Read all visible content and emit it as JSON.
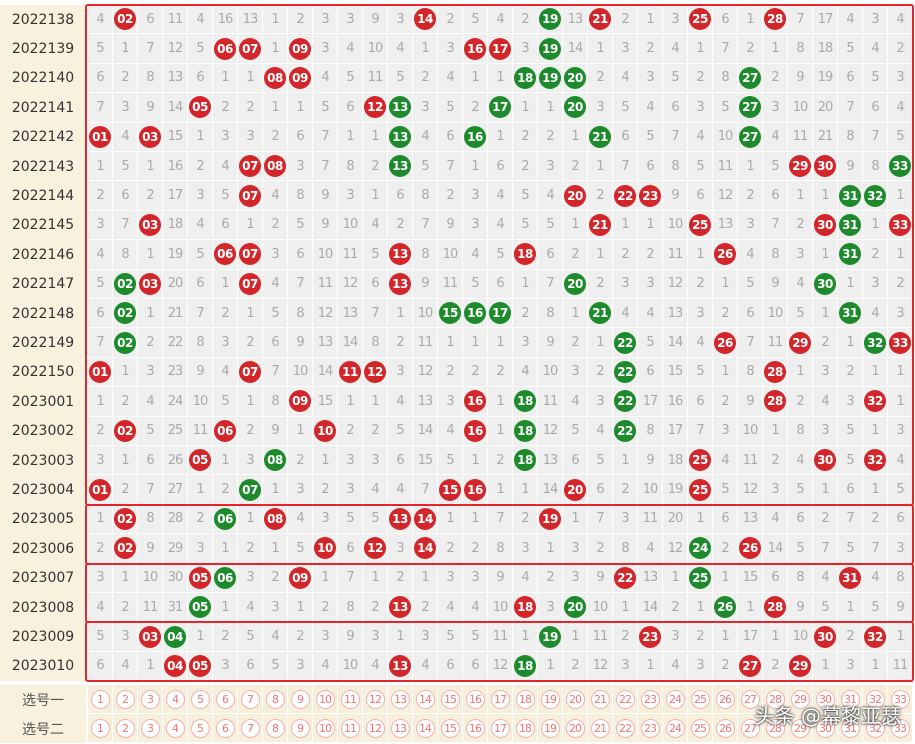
{
  "rows": [
    {
      "issue": "2022138",
      "cells": [
        "4",
        {
          "text": "02",
          "color": "red"
        },
        "6",
        "11",
        "4",
        "16",
        "13",
        "1",
        "2",
        "3",
        "3",
        "9",
        "3",
        {
          "text": "14",
          "color": "red"
        },
        "2",
        "5",
        "4",
        "2",
        {
          "text": "19",
          "color": "green"
        },
        "13",
        {
          "text": "21",
          "color": "red"
        },
        "2",
        "1",
        "3",
        {
          "text": "25",
          "color": "red"
        },
        "6",
        "1",
        {
          "text": "28",
          "color": "red"
        },
        "7",
        "17",
        "4",
        "3",
        "4"
      ]
    },
    {
      "issue": "2022139",
      "cells": [
        "5",
        "1",
        "7",
        "12",
        "5",
        {
          "text": "06",
          "color": "red"
        },
        {
          "text": "07",
          "color": "red"
        },
        "1",
        {
          "text": "09",
          "color": "red"
        },
        "3",
        "4",
        "10",
        "4",
        "1",
        "3",
        {
          "text": "16",
          "color": "red"
        },
        {
          "text": "17",
          "color": "red"
        },
        "3",
        {
          "text": "19",
          "color": "green"
        },
        "14",
        "1",
        "3",
        "2",
        "4",
        "1",
        "7",
        "2",
        "1",
        "8",
        "18",
        "5",
        "4",
        "2"
      ]
    },
    {
      "issue": "2022140",
      "cells": [
        "6",
        "2",
        "8",
        "13",
        "6",
        "1",
        "1",
        {
          "text": "08",
          "color": "red"
        },
        {
          "text": "09",
          "color": "red"
        },
        "4",
        "5",
        "11",
        "5",
        "2",
        "4",
        "1",
        "1",
        {
          "text": "18",
          "color": "green"
        },
        {
          "text": "19",
          "color": "green"
        },
        {
          "text": "20",
          "color": "green"
        },
        "2",
        "4",
        "3",
        "5",
        "2",
        "8",
        {
          "text": "27",
          "color": "green"
        },
        "2",
        "9",
        "19",
        "6",
        "5",
        "3"
      ]
    },
    {
      "issue": "2022141",
      "cells": [
        "7",
        "3",
        "9",
        "14",
        {
          "text": "05",
          "color": "red"
        },
        "2",
        "2",
        "1",
        "1",
        "5",
        "6",
        {
          "text": "12",
          "color": "red"
        },
        {
          "text": "13",
          "color": "green"
        },
        "3",
        "5",
        "2",
        {
          "text": "17",
          "color": "green"
        },
        "1",
        "1",
        {
          "text": "20",
          "color": "green"
        },
        "3",
        "5",
        "4",
        "6",
        "3",
        "5",
        {
          "text": "27",
          "color": "green"
        },
        "3",
        "10",
        "20",
        "7",
        "6",
        "4"
      ]
    },
    {
      "issue": "2022142",
      "cells": [
        {
          "text": "01",
          "color": "red"
        },
        "4",
        {
          "text": "03",
          "color": "red"
        },
        "15",
        "1",
        "3",
        "3",
        "2",
        "6",
        "7",
        "1",
        "1",
        {
          "text": "13",
          "color": "green"
        },
        "4",
        "6",
        {
          "text": "16",
          "color": "green"
        },
        "1",
        "2",
        "2",
        "1",
        {
          "text": "21",
          "color": "green"
        },
        "6",
        "5",
        "7",
        "4",
        "10",
        {
          "text": "27",
          "color": "green"
        },
        "4",
        "11",
        "21",
        "8",
        "7",
        "5"
      ]
    },
    {
      "issue": "2022143",
      "cells": [
        "1",
        "5",
        "1",
        "16",
        "2",
        "4",
        {
          "text": "07",
          "color": "red"
        },
        {
          "text": "08",
          "color": "red"
        },
        "3",
        "7",
        "8",
        "2",
        {
          "text": "13",
          "color": "green"
        },
        "5",
        "7",
        "1",
        "6",
        "2",
        "3",
        "2",
        "1",
        "7",
        "6",
        "8",
        "5",
        "11",
        "1",
        "5",
        {
          "text": "29",
          "color": "red"
        },
        {
          "text": "30",
          "color": "red"
        },
        "9",
        "8",
        {
          "text": "33",
          "color": "green"
        }
      ]
    },
    {
      "issue": "2022144",
      "cells": [
        "2",
        "6",
        "2",
        "17",
        "3",
        "5",
        {
          "text": "07",
          "color": "red"
        },
        "4",
        "8",
        "9",
        "3",
        "1",
        "6",
        "8",
        "2",
        "3",
        "4",
        "5",
        "4",
        {
          "text": "20",
          "color": "red"
        },
        "2",
        {
          "text": "22",
          "color": "red"
        },
        {
          "text": "23",
          "color": "red"
        },
        "9",
        "6",
        "12",
        "2",
        "6",
        "1",
        "1",
        {
          "text": "31",
          "color": "green"
        },
        {
          "text": "32",
          "color": "green"
        },
        "1"
      ]
    },
    {
      "issue": "2022145",
      "cells": [
        "3",
        "7",
        {
          "text": "03",
          "color": "red"
        },
        "18",
        "4",
        "6",
        "1",
        "2",
        "5",
        "9",
        "10",
        "4",
        "2",
        "7",
        "9",
        "3",
        "4",
        "5",
        "5",
        "1",
        {
          "text": "21",
          "color": "red"
        },
        "1",
        "1",
        "10",
        {
          "text": "25",
          "color": "red"
        },
        "13",
        "3",
        "7",
        "2",
        {
          "text": "30",
          "color": "red"
        },
        {
          "text": "31",
          "color": "green"
        },
        "1",
        {
          "text": "33",
          "color": "red"
        }
      ]
    },
    {
      "issue": "2022146",
      "cells": [
        "4",
        "8",
        "1",
        "19",
        "5",
        {
          "text": "06",
          "color": "red"
        },
        {
          "text": "07",
          "color": "red"
        },
        "3",
        "6",
        "10",
        "11",
        "5",
        {
          "text": "13",
          "color": "red"
        },
        "8",
        "10",
        "4",
        "5",
        {
          "text": "18",
          "color": "red"
        },
        "6",
        "2",
        "1",
        "2",
        "2",
        "11",
        "1",
        {
          "text": "26",
          "color": "red"
        },
        "4",
        "8",
        "3",
        "1",
        {
          "text": "31",
          "color": "green"
        },
        "2",
        "1"
      ]
    },
    {
      "issue": "2022147",
      "cells": [
        "5",
        {
          "text": "02",
          "color": "green"
        },
        {
          "text": "03",
          "color": "red"
        },
        "20",
        "6",
        "1",
        {
          "text": "07",
          "color": "red"
        },
        "4",
        "7",
        "11",
        "12",
        "6",
        {
          "text": "13",
          "color": "red"
        },
        "9",
        "11",
        "5",
        "6",
        "1",
        "7",
        {
          "text": "20",
          "color": "green"
        },
        "2",
        "3",
        "3",
        "12",
        "2",
        "1",
        "5",
        "9",
        "4",
        {
          "text": "30",
          "color": "green"
        },
        "1",
        "3",
        "2"
      ]
    },
    {
      "issue": "2022148",
      "cells": [
        "6",
        {
          "text": "02",
          "color": "green"
        },
        "1",
        "21",
        "7",
        "2",
        "1",
        "5",
        "8",
        "12",
        "13",
        "7",
        "1",
        "10",
        {
          "text": "15",
          "color": "green"
        },
        {
          "text": "16",
          "color": "green"
        },
        {
          "text": "17",
          "color": "green"
        },
        "2",
        "8",
        "1",
        {
          "text": "21",
          "color": "green"
        },
        "4",
        "4",
        "13",
        "3",
        "2",
        "6",
        "10",
        "5",
        "1",
        {
          "text": "31",
          "color": "green"
        },
        "4",
        "3"
      ]
    },
    {
      "issue": "2022149",
      "cells": [
        "7",
        {
          "text": "02",
          "color": "green"
        },
        "2",
        "22",
        "8",
        "3",
        "2",
        "6",
        "9",
        "13",
        "14",
        "8",
        "2",
        "11",
        "1",
        "1",
        "1",
        "3",
        "9",
        "2",
        "1",
        {
          "text": "22",
          "color": "green"
        },
        "5",
        "14",
        "4",
        {
          "text": "26",
          "color": "red"
        },
        "7",
        "11",
        {
          "text": "29",
          "color": "red"
        },
        "2",
        "1",
        {
          "text": "32",
          "color": "green"
        },
        {
          "text": "33",
          "color": "red"
        }
      ]
    },
    {
      "issue": "2022150",
      "cells": [
        {
          "text": "01",
          "color": "red"
        },
        "1",
        "3",
        "23",
        "9",
        "4",
        {
          "text": "07",
          "color": "red"
        },
        "7",
        "10",
        "14",
        {
          "text": "11",
          "color": "red"
        },
        {
          "text": "12",
          "color": "red"
        },
        "3",
        "12",
        "2",
        "2",
        "2",
        "4",
        "10",
        "3",
        "2",
        {
          "text": "22",
          "color": "green"
        },
        "6",
        "15",
        "5",
        "1",
        "8",
        {
          "text": "28",
          "color": "red"
        },
        "1",
        "3",
        "2",
        "1",
        "1"
      ]
    },
    {
      "issue": "2023001",
      "cells": [
        "1",
        "2",
        "4",
        "24",
        "10",
        "5",
        "1",
        "8",
        {
          "text": "09",
          "color": "red"
        },
        "15",
        "1",
        "1",
        "4",
        "13",
        "3",
        {
          "text": "16",
          "color": "red"
        },
        "1",
        {
          "text": "18",
          "color": "green"
        },
        "11",
        "4",
        "3",
        {
          "text": "22",
          "color": "green"
        },
        "17",
        "16",
        "6",
        "2",
        "9",
        {
          "text": "28",
          "color": "red"
        },
        "2",
        "4",
        "3",
        {
          "text": "32",
          "color": "red"
        },
        "1"
      ]
    },
    {
      "issue": "2023002",
      "cells": [
        "2",
        {
          "text": "02",
          "color": "red"
        },
        "5",
        "25",
        "11",
        {
          "text": "06",
          "color": "red"
        },
        "2",
        "9",
        "1",
        {
          "text": "10",
          "color": "red"
        },
        "2",
        "2",
        "5",
        "14",
        "4",
        {
          "text": "16",
          "color": "red"
        },
        "1",
        {
          "text": "18",
          "color": "green"
        },
        "12",
        "5",
        "4",
        {
          "text": "22",
          "color": "green"
        },
        "8",
        "17",
        "7",
        "3",
        "10",
        "1",
        "8",
        "3",
        "5",
        "1",
        "3"
      ]
    },
    {
      "issue": "2023003",
      "cells": [
        "3",
        "1",
        "6",
        "26",
        {
          "text": "05",
          "color": "red"
        },
        "1",
        "3",
        {
          "text": "08",
          "color": "green"
        },
        "2",
        "1",
        "3",
        "3",
        "6",
        "15",
        "5",
        "1",
        "2",
        {
          "text": "18",
          "color": "green"
        },
        "13",
        "6",
        "5",
        "1",
        "9",
        "18",
        {
          "text": "25",
          "color": "red"
        },
        "4",
        "11",
        "2",
        "4",
        {
          "text": "30",
          "color": "red"
        },
        "5",
        {
          "text": "32",
          "color": "red"
        },
        "4"
      ]
    },
    {
      "issue": "2023004",
      "cells": [
        {
          "text": "01",
          "color": "red"
        },
        "2",
        "7",
        "27",
        "1",
        "2",
        {
          "text": "07",
          "color": "green"
        },
        "1",
        "3",
        "2",
        "3",
        "4",
        "4",
        "7",
        {
          "text": "15",
          "color": "red"
        },
        {
          "text": "16",
          "color": "red"
        },
        "1",
        "1",
        "14",
        {
          "text": "20",
          "color": "red"
        },
        "6",
        "2",
        "10",
        "19",
        {
          "text": "25",
          "color": "red"
        },
        "5",
        "12",
        "3",
        "5",
        "1",
        "6",
        "1",
        "5"
      ]
    },
    {
      "issue": "2023005",
      "cells": [
        "1",
        {
          "text": "02",
          "color": "red"
        },
        "8",
        "28",
        "2",
        {
          "text": "06",
          "color": "green"
        },
        "1",
        {
          "text": "08",
          "color": "red"
        },
        "4",
        "3",
        "5",
        "5",
        {
          "text": "13",
          "color": "red"
        },
        {
          "text": "14",
          "color": "red"
        },
        "1",
        "1",
        "7",
        "2",
        {
          "text": "19",
          "color": "red"
        },
        "1",
        "7",
        "3",
        "11",
        "20",
        "1",
        "6",
        "13",
        "4",
        "6",
        "2",
        "7",
        "2",
        "6"
      ]
    },
    {
      "issue": "2023006",
      "cells": [
        "2",
        {
          "text": "02",
          "color": "red"
        },
        "9",
        "29",
        "3",
        "1",
        "2",
        "1",
        "5",
        {
          "text": "10",
          "color": "red"
        },
        "6",
        {
          "text": "12",
          "color": "red"
        },
        "3",
        {
          "text": "14",
          "color": "red"
        },
        "2",
        "2",
        "8",
        "3",
        "1",
        "3",
        "2",
        "8",
        "4",
        "12",
        {
          "text": "24",
          "color": "green"
        },
        "2",
        {
          "text": "26",
          "color": "red"
        },
        "14",
        "5",
        "7",
        "5",
        "7",
        "3"
      ]
    },
    {
      "issue": "2023007",
      "cells": [
        "3",
        "1",
        "10",
        "30",
        {
          "text": "05",
          "color": "red"
        },
        {
          "text": "06",
          "color": "green"
        },
        "3",
        "2",
        {
          "text": "09",
          "color": "red"
        },
        "1",
        "7",
        "1",
        "2",
        "1",
        "3",
        "3",
        "9",
        "4",
        "2",
        "3",
        "9",
        {
          "text": "22",
          "color": "red"
        },
        "13",
        "1",
        {
          "text": "25",
          "color": "green"
        },
        "1",
        "15",
        "6",
        "8",
        "4",
        {
          "text": "31",
          "color": "red"
        },
        "4",
        "8"
      ]
    },
    {
      "issue": "2023008",
      "cells": [
        "4",
        "2",
        "11",
        "31",
        {
          "text": "05",
          "color": "green"
        },
        "1",
        "4",
        "3",
        "1",
        "2",
        "8",
        "2",
        {
          "text": "13",
          "color": "red"
        },
        "2",
        "4",
        "4",
        "10",
        {
          "text": "18",
          "color": "red"
        },
        "3",
        {
          "text": "20",
          "color": "green"
        },
        "10",
        "1",
        "14",
        "2",
        "1",
        {
          "text": "26",
          "color": "green"
        },
        "1",
        {
          "text": "28",
          "color": "red"
        },
        "9",
        "5",
        "1",
        "5",
        "9"
      ]
    },
    {
      "issue": "2023009",
      "cells": [
        "5",
        "3",
        {
          "text": "03",
          "color": "red"
        },
        {
          "text": "04",
          "color": "green"
        },
        "1",
        "2",
        "5",
        "4",
        "2",
        "3",
        "9",
        "3",
        "1",
        "3",
        "5",
        "5",
        "11",
        "1",
        {
          "text": "19",
          "color": "green"
        },
        "1",
        "11",
        "2",
        {
          "text": "23",
          "color": "red"
        },
        "3",
        "2",
        "1",
        "17",
        "1",
        "10",
        {
          "text": "30",
          "color": "red"
        },
        "2",
        {
          "text": "32",
          "color": "red"
        },
        "1"
      ]
    },
    {
      "issue": "2023010",
      "cells": [
        "6",
        "4",
        "1",
        {
          "text": "04",
          "color": "red"
        },
        {
          "text": "05",
          "color": "red"
        },
        "3",
        "6",
        "5",
        "3",
        "4",
        "10",
        "4",
        {
          "text": "13",
          "color": "red"
        },
        "4",
        "6",
        "6",
        "12",
        {
          "text": "18",
          "color": "green"
        },
        "1",
        "2",
        "12",
        "3",
        "1",
        "4",
        "3",
        "2",
        {
          "text": "27",
          "color": "red"
        },
        "2",
        {
          "text": "29",
          "color": "red"
        },
        "1",
        "3",
        "1",
        "11"
      ]
    }
  ],
  "select_rows": [
    "选号一",
    "选号二"
  ],
  "select_numbers": [
    "1",
    "2",
    "3",
    "4",
    "5",
    "6",
    "7",
    "8",
    "9",
    "10",
    "11",
    "12",
    "13",
    "14",
    "15",
    "16",
    "17",
    "18",
    "19",
    "20",
    "21",
    "22",
    "23",
    "24",
    "25",
    "26",
    "27",
    "28",
    "29",
    "30",
    "31",
    "32",
    "33"
  ],
  "watermark": "头条 @幕黎亚瑟"
}
